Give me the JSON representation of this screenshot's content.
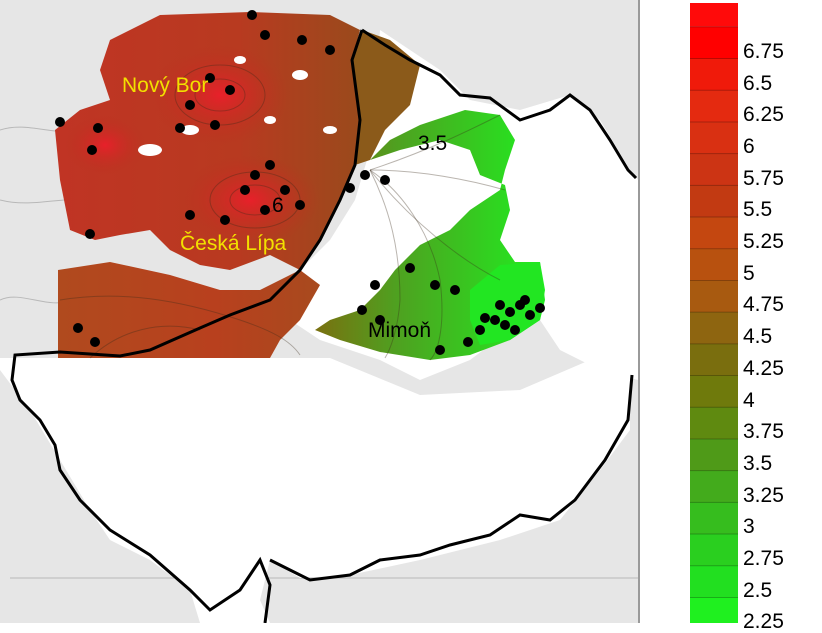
{
  "map": {
    "labels": [
      {
        "text": "Nový Bor",
        "color": "#f2e000"
      },
      {
        "text": "Česká Lípa",
        "color": "#f2e000"
      },
      {
        "text": "Mimoň",
        "color": "#000000"
      },
      {
        "text": "3.5",
        "color": "#000000"
      },
      {
        "text": "6",
        "color": "#000000"
      }
    ],
    "colors": {
      "background": "#e6e6e6",
      "high": "#b02d1e",
      "mid": "#8b4f1f",
      "low": "#56c024",
      "lowest": "#1ff01f",
      "boundary": "#000000",
      "points": "#000000"
    }
  },
  "legend": {
    "ticks": [
      "6.75",
      "6.5",
      "6.25",
      "6",
      "5.75",
      "5.5",
      "5.25",
      "5",
      "4.75",
      "4.5",
      "4.25",
      "4",
      "3.75",
      "3.5",
      "3.25",
      "3",
      "2.75",
      "2.5",
      "2.25"
    ],
    "colors": [
      "#ff0000",
      "#f01a0a",
      "#e42a10",
      "#d93012",
      "#cc3414",
      "#c23a12",
      "#c44710",
      "#b8510f",
      "#a85a10",
      "#8e6510",
      "#7a6e0e",
      "#6f7a0c",
      "#5f8a10",
      "#4f9a18",
      "#43ab1c",
      "#36bd1e",
      "#2acf1f",
      "#22df20",
      "#1ff01f"
    ]
  }
}
